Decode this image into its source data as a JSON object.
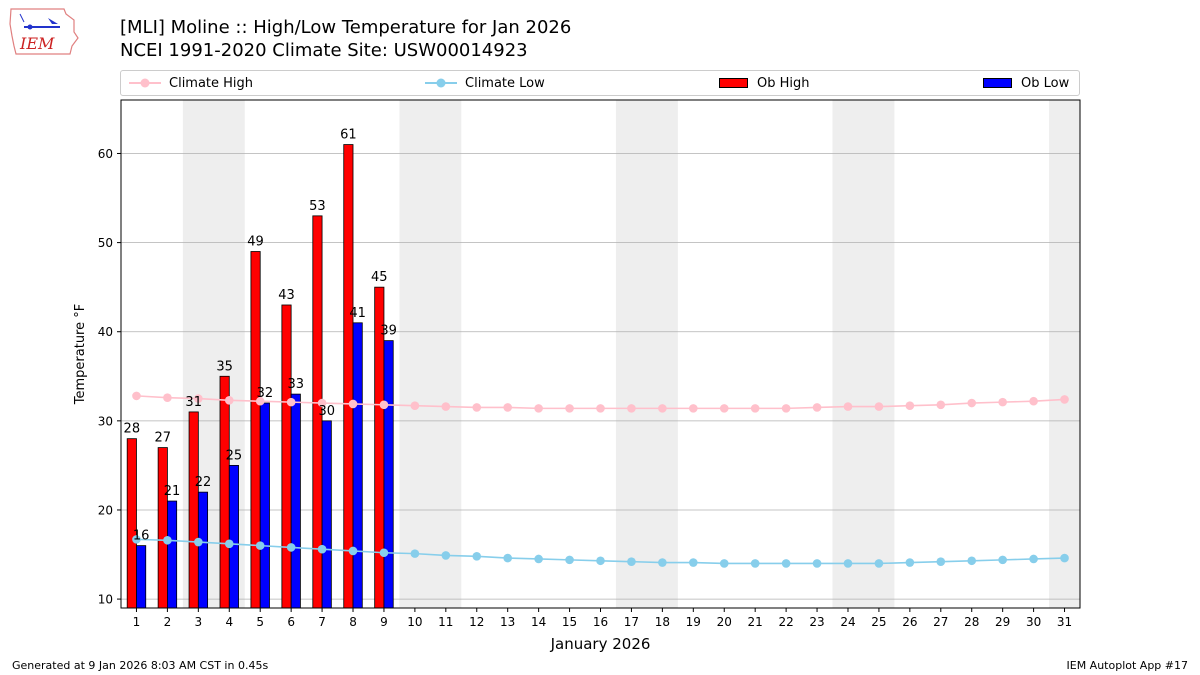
{
  "header": {
    "title_line1": "[MLI] Moline :: High/Low Temperature for Jan 2026",
    "title_line2": "NCEI 1991-2020 Climate Site: USW00014923",
    "logo_text": "IEM"
  },
  "footer": {
    "left": "Generated at 9 Jan 2026 8:03 AM CST in 0.45s",
    "right": "IEM Autoplot App #17"
  },
  "colors": {
    "ob_high": "#ff0000",
    "ob_low": "#0000ff",
    "climate_high": "#ffc0cb",
    "climate_low": "#87ceeb",
    "weekend_shade": "#eeeeee",
    "grid": "#b0b0b0"
  },
  "chart_data": {
    "type": "bar",
    "xlabel": "January 2026",
    "ylabel": "Temperature °F",
    "ylim": [
      9,
      66
    ],
    "xlim": [
      0.5,
      31.5
    ],
    "yticks": [
      10,
      20,
      30,
      40,
      50,
      60
    ],
    "grid": "horizontal",
    "legend_placement": "top",
    "days": [
      1,
      2,
      3,
      4,
      5,
      6,
      7,
      8,
      9,
      10,
      11,
      12,
      13,
      14,
      15,
      16,
      17,
      18,
      19,
      20,
      21,
      22,
      23,
      24,
      25,
      26,
      27,
      28,
      29,
      30,
      31
    ],
    "shaded_weekends": [
      [
        3,
        4
      ],
      [
        10,
        11
      ],
      [
        17,
        18
      ],
      [
        24,
        25
      ],
      [
        31
      ]
    ],
    "legend": [
      "Climate High",
      "Climate Low",
      "Ob High",
      "Ob Low"
    ],
    "series": [
      {
        "name": "Ob High",
        "kind": "bar",
        "values": [
          28,
          27,
          31,
          35,
          49,
          43,
          53,
          61,
          45
        ]
      },
      {
        "name": "Ob Low",
        "kind": "bar",
        "values": [
          16,
          21,
          22,
          25,
          32,
          33,
          30,
          41,
          39
        ]
      },
      {
        "name": "Climate High",
        "kind": "line",
        "values": [
          32.8,
          32.6,
          32.5,
          32.3,
          32.2,
          32.1,
          32.0,
          31.9,
          31.8,
          31.7,
          31.6,
          31.5,
          31.5,
          31.4,
          31.4,
          31.4,
          31.4,
          31.4,
          31.4,
          31.4,
          31.4,
          31.4,
          31.5,
          31.6,
          31.6,
          31.7,
          31.8,
          32.0,
          32.1,
          32.2,
          32.4
        ]
      },
      {
        "name": "Climate Low",
        "kind": "line",
        "values": [
          16.7,
          16.6,
          16.4,
          16.2,
          16.0,
          15.8,
          15.6,
          15.4,
          15.2,
          15.1,
          14.9,
          14.8,
          14.6,
          14.5,
          14.4,
          14.3,
          14.2,
          14.1,
          14.1,
          14.0,
          14.0,
          14.0,
          14.0,
          14.0,
          14.0,
          14.1,
          14.2,
          14.3,
          14.4,
          14.5,
          14.6
        ]
      }
    ]
  }
}
